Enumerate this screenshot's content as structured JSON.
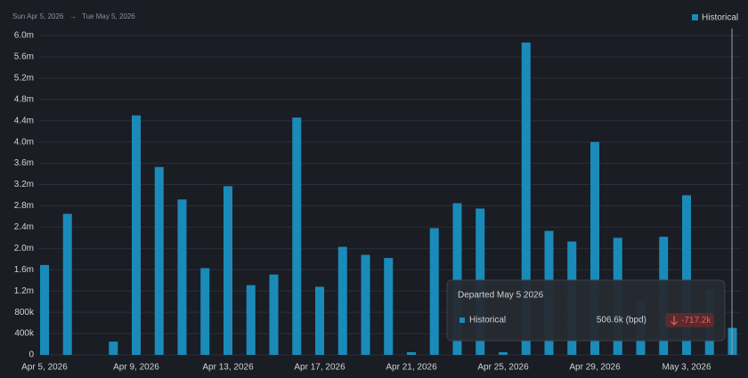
{
  "chart_data": {
    "type": "bar",
    "subtitle_start": "Sun Apr 5, 2026",
    "subtitle_end": "Tue May 5, 2026",
    "categories": [
      "Apr 5, 2026",
      null,
      null,
      null,
      "Apr 9, 2026",
      null,
      null,
      null,
      "Apr 13, 2026",
      null,
      null,
      null,
      "Apr 17, 2026",
      null,
      null,
      null,
      "Apr 21, 2026",
      null,
      null,
      null,
      "Apr 25, 2026",
      null,
      null,
      null,
      "Apr 29, 2026",
      null,
      null,
      null,
      "May 3, 2026",
      null,
      null
    ],
    "series": [
      {
        "name": "Historical",
        "color": "#1a8bb9",
        "values": [
          1690000,
          2650000,
          null,
          250000,
          4500000,
          3530000,
          2920000,
          1630000,
          3170000,
          1310000,
          1510000,
          4460000,
          1280000,
          2030000,
          1880000,
          1820000,
          50000,
          2380000,
          2850000,
          2750000,
          50000,
          5870000,
          2330000,
          2130000,
          4000000,
          2200000,
          1000000,
          2220000,
          3000000,
          1223800,
          506600
        ]
      }
    ],
    "ylim": [
      0,
      6000000
    ],
    "yticks": [
      0,
      {
        "value": 400000,
        "label": "400k"
      },
      {
        "value": 800000,
        "label": "800k"
      },
      {
        "value": 1200000,
        "label": "1.2m"
      },
      {
        "value": 1600000,
        "label": "1.6m"
      },
      {
        "value": 2000000,
        "label": "2.0m"
      },
      {
        "value": 2400000,
        "label": "2.4m"
      },
      {
        "value": 2800000,
        "label": "2.8m"
      },
      {
        "value": 3200000,
        "label": "3.2m"
      },
      {
        "value": 3600000,
        "label": "3.6m"
      },
      {
        "value": 4000000,
        "label": "4.0m"
      },
      {
        "value": 4400000,
        "label": "4.4m"
      },
      {
        "value": 4800000,
        "label": "4.8m"
      },
      {
        "value": 5200000,
        "label": "5.2m"
      },
      {
        "value": 5600000,
        "label": "5.6m"
      },
      {
        "value": 6000000,
        "label": "6.0m"
      }
    ],
    "grid": true,
    "legend": "top-right",
    "tooltip": {
      "title": "Departed May 5 2026",
      "series": "Historical",
      "value_label": "506.6k (bpd)",
      "change_label": "-717.2k"
    }
  }
}
